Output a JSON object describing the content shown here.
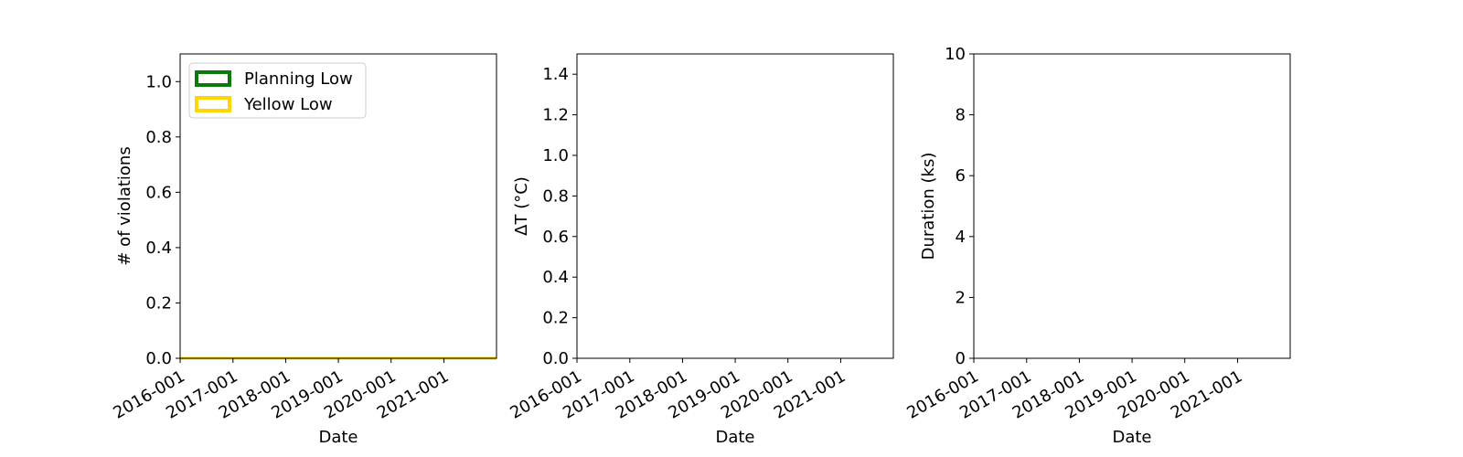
{
  "chart_data": [
    {
      "type": "area",
      "title": "",
      "xlabel": "Date",
      "ylabel": "# of violations",
      "xticks": [
        "2016-001",
        "2017-001",
        "2018-001",
        "2019-001",
        "2020-001",
        "2021-001"
      ],
      "xlim": [
        "2016-001",
        "2021-365"
      ],
      "yticks": [
        "0.0",
        "0.2",
        "0.4",
        "0.6",
        "0.8",
        "1.0"
      ],
      "ylim": [
        0,
        1.1
      ],
      "legend": {
        "placement": "top-left"
      },
      "series": [
        {
          "name": "Planning Low",
          "color": "#0b7a0b",
          "x": [
            "2016-001",
            "2021-365"
          ],
          "values": [
            0,
            0
          ]
        },
        {
          "name": "Yellow Low",
          "color": "#ffd700",
          "x": [
            "2016-001",
            "2021-365"
          ],
          "values": [
            0,
            0
          ]
        }
      ]
    },
    {
      "type": "scatter",
      "title": "",
      "xlabel": "Date",
      "ylabel": "ΔT ($^\\circ$C)",
      "ylabel_display": "ΔT (°C)",
      "xticks": [
        "2016-001",
        "2017-001",
        "2018-001",
        "2019-001",
        "2020-001",
        "2021-001"
      ],
      "xlim": [
        "2016-001",
        "2021-365"
      ],
      "yticks": [
        "0.0",
        "0.2",
        "0.4",
        "0.6",
        "0.8",
        "1.0",
        "1.2",
        "1.4"
      ],
      "ylim": [
        0,
        1.5
      ],
      "series": []
    },
    {
      "type": "scatter",
      "title": "",
      "xlabel": "Date",
      "ylabel": "Duration (ks)",
      "xticks": [
        "2016-001",
        "2017-001",
        "2018-001",
        "2019-001",
        "2020-001",
        "2021-001"
      ],
      "xlim": [
        "2016-001",
        "2021-365"
      ],
      "yticks": [
        "0",
        "2",
        "4",
        "6",
        "8",
        "10"
      ],
      "ylim": [
        0,
        10
      ],
      "series": []
    }
  ]
}
